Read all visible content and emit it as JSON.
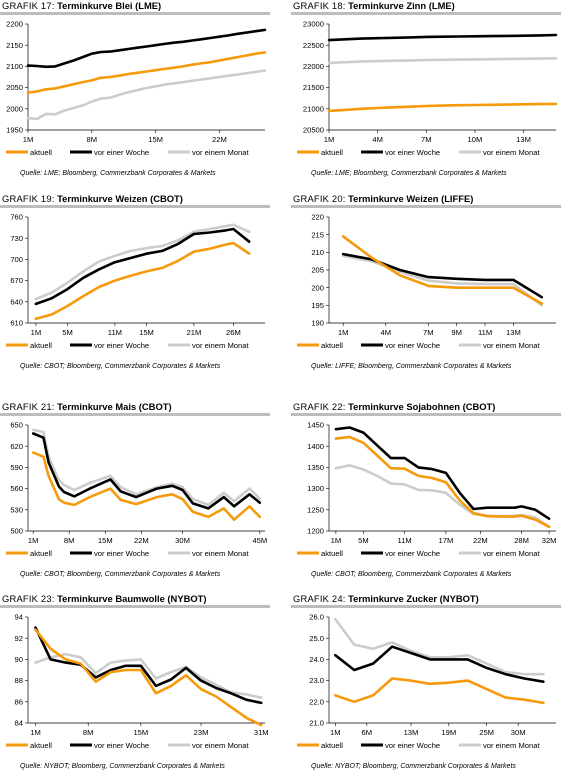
{
  "legend_labels": [
    "aktuell",
    "vor einer Woche",
    "vor einem Monat"
  ],
  "series_colors": {
    "aktuell": "#f59a0a",
    "vor einer Woche": "#000000",
    "vor einem Monat": "#cccccc"
  },
  "panels": [
    {
      "id": "17",
      "grafik": "GRAFIK 17:",
      "title": "Terminkurve Blei (LME)",
      "source": "Quelle: LME; Bloomberg, Commerzbank Corporates & Markets",
      "chart_data": {
        "type": "line",
        "title": "Terminkurve Blei (LME)",
        "yticks": [
          "1950",
          "2000",
          "2050",
          "2100",
          "2150",
          "2200"
        ],
        "ylim": [
          1950,
          2200
        ],
        "xticks": [
          "1M",
          "8M",
          "15M",
          "22M"
        ],
        "xtick_pos": [
          1,
          8,
          15,
          22
        ],
        "xlim": [
          1,
          27
        ],
        "x": [
          1,
          2,
          3,
          4,
          5,
          6,
          7,
          8,
          9,
          10,
          11,
          12,
          13,
          14,
          15,
          16,
          17,
          18,
          19,
          20,
          21,
          22,
          23,
          24,
          25,
          26,
          27
        ],
        "series": [
          {
            "name": "aktuell",
            "values": [
              2038,
              2041,
              2046,
              2048,
              2053,
              2058,
              2063,
              2067,
              2073,
              2075,
              2078,
              2082,
              2085,
              2088,
              2091,
              2094,
              2097,
              2100,
              2104,
              2107,
              2110,
              2114,
              2118,
              2122,
              2126,
              2130,
              2133
            ]
          },
          {
            "name": "vor einer Woche",
            "values": [
              2102,
              2101,
              2099,
              2100,
              2107,
              2114,
              2122,
              2130,
              2134,
              2135,
              2138,
              2141,
              2144,
              2147,
              2150,
              2153,
              2156,
              2158,
              2161,
              2164,
              2167,
              2170,
              2173,
              2177,
              2180,
              2183,
              2186
            ]
          },
          {
            "name": "vor einem Monat",
            "values": [
              1978,
              1976,
              1988,
              1987,
              1996,
              2002,
              2008,
              2017,
              2024,
              2026,
              2033,
              2039,
              2044,
              2049,
              2053,
              2057,
              2060,
              2063,
              2066,
              2069,
              2072,
              2075,
              2078,
              2081,
              2084,
              2087,
              2090
            ]
          }
        ]
      }
    },
    {
      "id": "18",
      "grafik": "GRAFIK 18:",
      "title": "Terminkurve Zinn (LME)",
      "source": "Quelle: LME; Bloomberg, Commerzbank Corporates & Markets",
      "chart_data": {
        "type": "line",
        "title": "Terminkurve Zinn (LME)",
        "yticks": [
          "20500",
          "21000",
          "21500",
          "22000",
          "22500",
          "23000"
        ],
        "ylim": [
          20500,
          23000
        ],
        "xticks": [
          "1M",
          "4M",
          "7M",
          "10M",
          "13M"
        ],
        "xtick_pos": [
          1,
          4,
          7,
          10,
          13
        ],
        "xlim": [
          1,
          15
        ],
        "x": [
          1,
          2,
          3,
          4,
          5,
          6,
          7,
          8,
          9,
          10,
          11,
          12,
          13,
          14,
          15
        ],
        "series": [
          {
            "name": "aktuell",
            "values": [
              20950,
              20975,
              21000,
              21020,
              21035,
              21050,
              21065,
              21075,
              21085,
              21090,
              21095,
              21100,
              21105,
              21110,
              21115
            ]
          },
          {
            "name": "vor einer Woche",
            "values": [
              22620,
              22640,
              22655,
              22665,
              22675,
              22685,
              22695,
              22700,
              22705,
              22710,
              22715,
              22720,
              22725,
              22730,
              22740
            ]
          },
          {
            "name": "vor einem Monat",
            "values": [
              22080,
              22100,
              22115,
              22125,
              22135,
              22140,
              22150,
              22155,
              22160,
              22165,
              22170,
              22175,
              22180,
              22185,
              22190
            ]
          }
        ]
      }
    },
    {
      "id": "19",
      "grafik": "GRAFIK 19:",
      "title": "Terminkurve Weizen (CBOT)",
      "source": "Quelle: CBOT; Bloomberg, Commerzbank Corporates & Markets",
      "chart_data": {
        "type": "line",
        "title": "Terminkurve Weizen (CBOT)",
        "yticks": [
          "610",
          "640",
          "670",
          "700",
          "730",
          "760"
        ],
        "ylim": [
          610,
          760
        ],
        "xticks": [
          "1M",
          "5M",
          "11M",
          "15M",
          "21M",
          "26M"
        ],
        "xtick_pos": [
          1,
          5,
          11,
          15,
          21,
          26
        ],
        "xlim": [
          0,
          30
        ],
        "x": [
          1,
          3,
          5,
          7,
          9,
          11,
          13,
          15,
          17,
          19,
          21,
          23,
          25,
          26,
          28
        ],
        "series": [
          {
            "name": "aktuell",
            "values": [
              616,
              622,
              634,
              648,
              661,
              670,
              677,
              683,
              688,
              698,
              711,
              715,
              721,
              723,
              708
            ]
          },
          {
            "name": "vor einer Woche",
            "values": [
              637,
              645,
              658,
              674,
              686,
              696,
              702,
              708,
              712,
              722,
              736,
              738,
              741,
              743,
              725
            ]
          },
          {
            "name": "vor einem Monat",
            "values": [
              644,
              653,
              667,
              683,
              697,
              705,
              712,
              716,
              719,
              727,
              739,
              743,
              747,
              749,
              739
            ]
          }
        ]
      }
    },
    {
      "id": "20",
      "grafik": "GRAFIK 20:",
      "title": "Terminkurve Weizen (LIFFE)",
      "source": "Quelle: LIFFE; Bloomberg, Commerzbank Corporates & Markets",
      "chart_data": {
        "type": "line",
        "title": "Terminkurve Weizen (LIFFE)",
        "yticks": [
          "190",
          "195",
          "200",
          "205",
          "210",
          "215",
          "220"
        ],
        "ylim": [
          190,
          220
        ],
        "xticks": [
          "1M",
          "4M",
          "7M",
          "9M",
          "11M",
          "13M"
        ],
        "xtick_pos": [
          1,
          4,
          7,
          9,
          11,
          13
        ],
        "xlim": [
          0,
          16
        ],
        "x": [
          1,
          3,
          5,
          7,
          9,
          11,
          13,
          15
        ],
        "series": [
          {
            "name": "aktuell",
            "values": [
              214.5,
              208.5,
              203.5,
              200.5,
              200.0,
              200.0,
              200.0,
              195.5
            ]
          },
          {
            "name": "vor einer Woche",
            "values": [
              209.5,
              208.0,
              205.0,
              203.0,
              202.5,
              202.2,
              202.2,
              197.3
            ]
          },
          {
            "name": "vor einem Monat",
            "values": [
              209.0,
              207.5,
              204.5,
              202.0,
              201.2,
              201.0,
              201.0,
              195.0
            ]
          }
        ]
      }
    },
    {
      "id": "21",
      "grafik": "GRAFIK 21:",
      "title": "Terminkurve Mais (CBOT)",
      "source": "Quelle: CBOT; Bloomberg, Commerzbank Corporates & Markets",
      "chart_data": {
        "type": "line",
        "title": "Terminkurve Mais (CBOT)",
        "yticks": [
          "500",
          "530",
          "560",
          "590",
          "620",
          "650"
        ],
        "ylim": [
          500,
          650
        ],
        "xticks": [
          "1M",
          "8M",
          "15M",
          "22M",
          "30M",
          "45M"
        ],
        "xtick_pos": [
          1,
          8,
          15,
          22,
          30,
          45
        ],
        "xlim": [
          0,
          46
        ],
        "x": [
          1,
          3,
          4,
          6,
          7,
          9,
          12,
          16,
          18,
          21,
          25,
          28,
          30,
          32,
          35,
          38,
          40,
          43,
          45
        ],
        "series": [
          {
            "name": "aktuell",
            "values": [
              611,
              605,
              578,
              545,
              540,
              537,
              548,
              560,
              544,
              538,
              548,
              552,
              545,
              527,
              520,
              532,
              516,
              535,
              520
            ]
          },
          {
            "name": "vor einer Woche",
            "values": [
              638,
              632,
              597,
              563,
              555,
              549,
              560,
              573,
              556,
              548,
              560,
              564,
              558,
              539,
              532,
              548,
              535,
              552,
              540
            ]
          },
          {
            "name": "vor einem Monat",
            "values": [
              643,
              640,
              605,
              572,
              565,
              558,
              568,
              578,
              562,
              552,
              562,
              567,
              562,
              545,
              537,
              554,
              542,
              560,
              546
            ]
          }
        ]
      }
    },
    {
      "id": "22",
      "grafik": "GRAFIK 22:",
      "title": "Terminkurve Sojabohnen (CBOT)",
      "source": "Quelle: CBOT; Bloomberg, Commerzbank Corporates & Markets",
      "chart_data": {
        "type": "line",
        "title": "Terminkurve Sojabohnen (CBOT)",
        "yticks": [
          "1200",
          "1250",
          "1300",
          "1350",
          "1400",
          "1450"
        ],
        "ylim": [
          1200,
          1450
        ],
        "xticks": [
          "1M",
          "5M",
          "11M",
          "17M",
          "22M",
          "28M",
          "32M"
        ],
        "xtick_pos": [
          1,
          5,
          11,
          17,
          22,
          28,
          32
        ],
        "xlim": [
          0,
          33
        ],
        "x": [
          1,
          3,
          5,
          7,
          9,
          11,
          13,
          15,
          17,
          19,
          21,
          23,
          25,
          27,
          28,
          30,
          32
        ],
        "series": [
          {
            "name": "aktuell",
            "values": [
              1418,
              1422,
              1408,
              1378,
              1348,
              1347,
              1330,
              1325,
              1315,
              1272,
              1242,
              1235,
              1234,
              1234,
              1236,
              1227,
              1210
            ]
          },
          {
            "name": "vor einer Woche",
            "values": [
              1440,
              1444,
              1432,
              1402,
              1372,
              1372,
              1350,
              1346,
              1337,
              1290,
              1252,
              1255,
              1255,
              1255,
              1258,
              1250,
              1229
            ]
          },
          {
            "name": "vor einem Monat",
            "values": [
              1348,
              1355,
              1345,
              1330,
              1312,
              1310,
              1297,
              1296,
              1290,
              1262,
              1240,
              1236,
              1235,
              1236,
              1238,
              1232,
              1210
            ]
          }
        ]
      }
    },
    {
      "id": "23",
      "grafik": "GRAFIK 23:",
      "title": "Terminkurve Baumwolle (NYBOT)",
      "source": "Quelle: NYBOT; Bloomberg, Commerzbank Corporates & Markets",
      "chart_data": {
        "type": "line",
        "title": "Terminkurve Baumwolle (NYBOT)",
        "yticks": [
          "84",
          "86",
          "88",
          "90",
          "92",
          "94"
        ],
        "ylim": [
          84,
          94
        ],
        "xticks": [
          "1M",
          "8M",
          "15M",
          "23M",
          "31M"
        ],
        "xtick_pos": [
          1,
          8,
          15,
          23,
          31
        ],
        "xlim": [
          0,
          31.5
        ],
        "x": [
          1,
          3,
          5,
          7,
          9,
          11,
          13,
          15,
          17,
          19,
          21,
          23,
          25,
          27,
          29,
          31
        ],
        "series": [
          {
            "name": "aktuell",
            "values": [
              92.8,
              91.0,
              90.0,
              89.6,
              87.9,
              88.8,
              89.0,
              89.0,
              86.8,
              87.5,
              88.5,
              87.2,
              86.5,
              85.5,
              84.5,
              83.8
            ]
          },
          {
            "name": "vor einer Woche",
            "values": [
              93.0,
              90.0,
              89.7,
              89.5,
              88.3,
              89.0,
              89.4,
              89.4,
              87.5,
              88.1,
              89.2,
              88.0,
              87.3,
              86.8,
              86.2,
              85.9
            ]
          },
          {
            "name": "vor einem Monat",
            "values": [
              89.7,
              90.2,
              90.5,
              90.2,
              88.7,
              89.7,
              89.9,
              90.0,
              88.2,
              88.8,
              89.3,
              88.3,
              87.6,
              86.9,
              86.7,
              86.4
            ]
          }
        ]
      }
    },
    {
      "id": "24",
      "grafik": "GRAFIK 24:",
      "title": "Terminkurve Zucker (NYBOT)",
      "source": "Quelle: NYBOT; Bloomberg, Commerzbank Corporates & Markets",
      "chart_data": {
        "type": "line",
        "title": "Terminkurve Zucker (NYBOT)",
        "yticks": [
          "21.0",
          "22.0",
          "23.0",
          "24.0",
          "25.0",
          "26.0"
        ],
        "ylim": [
          21,
          26
        ],
        "xticks": [
          "1M",
          "6M",
          "13M",
          "19M",
          "25M",
          "30M"
        ],
        "xtick_pos": [
          1,
          6,
          13,
          19,
          25,
          30
        ],
        "xlim": [
          0,
          36
        ],
        "x": [
          1,
          4,
          7,
          10,
          13,
          16,
          19,
          22,
          25,
          28,
          31,
          34
        ],
        "series": [
          {
            "name": "aktuell",
            "values": [
              22.3,
              22.0,
              22.3,
              23.1,
              23.0,
              22.85,
              22.9,
              23.0,
              22.6,
              22.2,
              22.1,
              21.95
            ]
          },
          {
            "name": "vor einer Woche",
            "values": [
              24.2,
              23.5,
              23.8,
              24.6,
              24.3,
              24.0,
              24.0,
              24.0,
              23.6,
              23.3,
              23.1,
              22.95
            ]
          },
          {
            "name": "vor einem Monat",
            "values": [
              25.9,
              24.7,
              24.5,
              24.8,
              24.4,
              24.1,
              24.1,
              24.2,
              23.8,
              23.4,
              23.3,
              23.3
            ]
          }
        ]
      }
    }
  ]
}
